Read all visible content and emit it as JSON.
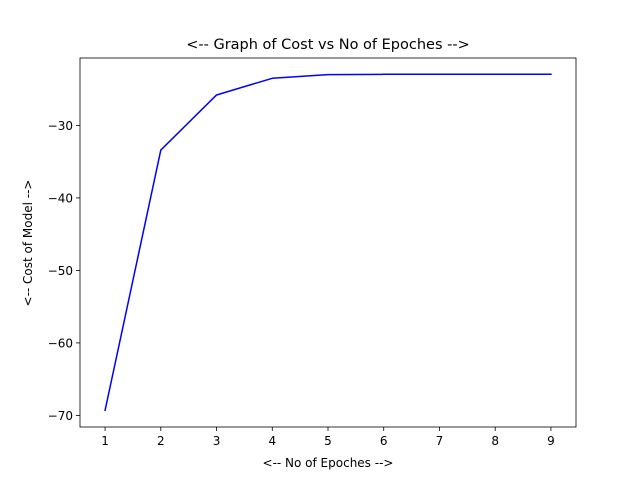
{
  "chart_data": {
    "type": "line",
    "title": "<-- Graph of Cost vs No of Epoches -->",
    "xlabel": "<-- No of Epoches -->",
    "ylabel": "<-- Cost of Model -->",
    "x": [
      1,
      2,
      3,
      4,
      5,
      6,
      7,
      8,
      9
    ],
    "series": [
      {
        "values": [
          -69.3,
          -33.4,
          -25.8,
          -23.5,
          -23.0,
          -22.95,
          -22.95,
          -22.95,
          -22.95
        ],
        "color": "#0000ff"
      }
    ],
    "xticks": [
      1,
      2,
      3,
      4,
      5,
      6,
      7,
      8,
      9
    ],
    "yticks": [
      -70,
      -60,
      -50,
      -40,
      -30
    ],
    "ytick_labels": [
      "−70",
      "−60",
      "−50",
      "−40",
      "−30"
    ],
    "xlim": [
      0.55,
      9.45
    ],
    "ylim": [
      -71.6,
      -20.7
    ],
    "grid": false,
    "legend": "none"
  }
}
